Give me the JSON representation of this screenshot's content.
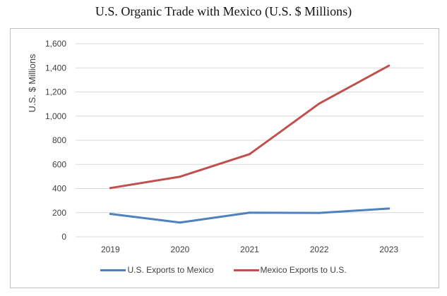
{
  "chart_data": {
    "type": "line",
    "title": "U.S. Organic Trade with Mexico (U.S. $ Millions)",
    "xlabel": "",
    "ylabel": "U.S. $ Millions",
    "categories": [
      "2019",
      "2020",
      "2021",
      "2022",
      "2023"
    ],
    "ylim": [
      0,
      1600
    ],
    "yticks": [
      0,
      200,
      400,
      600,
      800,
      1000,
      1200,
      1400,
      1600
    ],
    "ytick_labels": [
      "0",
      "200",
      "400",
      "600",
      "800",
      "1,000",
      "1,200",
      "1,400",
      "1,600"
    ],
    "grid": true,
    "legend_position": "bottom",
    "series": [
      {
        "name": "U.S. Exports to Mexico",
        "values": [
          190,
          118,
          200,
          198,
          234
        ],
        "color": "#4f81bd"
      },
      {
        "name": "Mexico Exports to U.S.",
        "values": [
          404,
          498,
          685,
          1104,
          1418
        ],
        "color": "#c0504d"
      }
    ]
  }
}
